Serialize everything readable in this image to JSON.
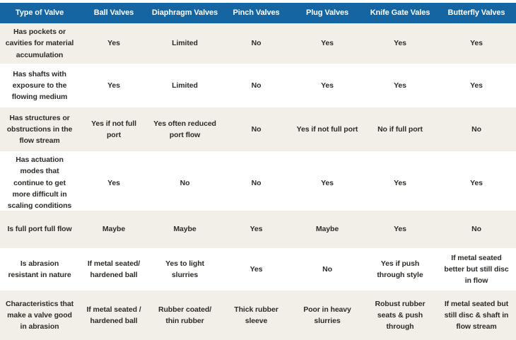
{
  "title": "Valve type comparison table",
  "colors": {
    "header_bg": "#1565a3",
    "header_text": "#ffffff",
    "row_alt_bg": "#f1efe8",
    "row_bg": "#ffffff",
    "body_text": "#2d2c29"
  },
  "chart_data": {
    "type": "table",
    "columns": [
      "Type of Valve",
      "Ball Valves",
      "Diaphragm Valves",
      "Pinch Valves",
      "Plug Valves",
      "Knife Gate Vales",
      "Butterfly Valves"
    ],
    "rows": [
      [
        "Has pockets or cavities for material accumulation",
        "Yes",
        "Limited",
        "No",
        "Yes",
        "Yes",
        "Yes"
      ],
      [
        "Has shafts with exposure to the flowing medium",
        "Yes",
        "Limited",
        "No",
        "Yes",
        "Yes",
        "Yes"
      ],
      [
        "Has structures or obstructions in the flow stream",
        "Yes if not full port",
        "Yes often reduced port flow",
        "No",
        "Yes if not full port",
        "No if full port",
        "No"
      ],
      [
        "Has actuation modes that continue to get more difficult in scaling conditions",
        "Yes",
        "No",
        "No",
        "Yes",
        "Yes",
        "Yes"
      ],
      [
        "Is full port full flow",
        "Maybe",
        "Maybe",
        "Yes",
        "Maybe",
        "Yes",
        "No"
      ],
      [
        "Is abrasion resistant in nature",
        "If metal seated/ hardened ball",
        "Yes to light slurries",
        "Yes",
        "No",
        "Yes if push through style",
        "If metal seated better but still disc in flow"
      ],
      [
        "Characteristics that make a valve good in abrasion",
        "If metal seated / hardened ball",
        "Rubber coated/ thin rubber",
        "Thick rubber sleeve",
        "Poor in heavy slurries",
        "Robust rubber seats & push through",
        "If metal seated but still disc & shaft in flow stream"
      ]
    ]
  }
}
